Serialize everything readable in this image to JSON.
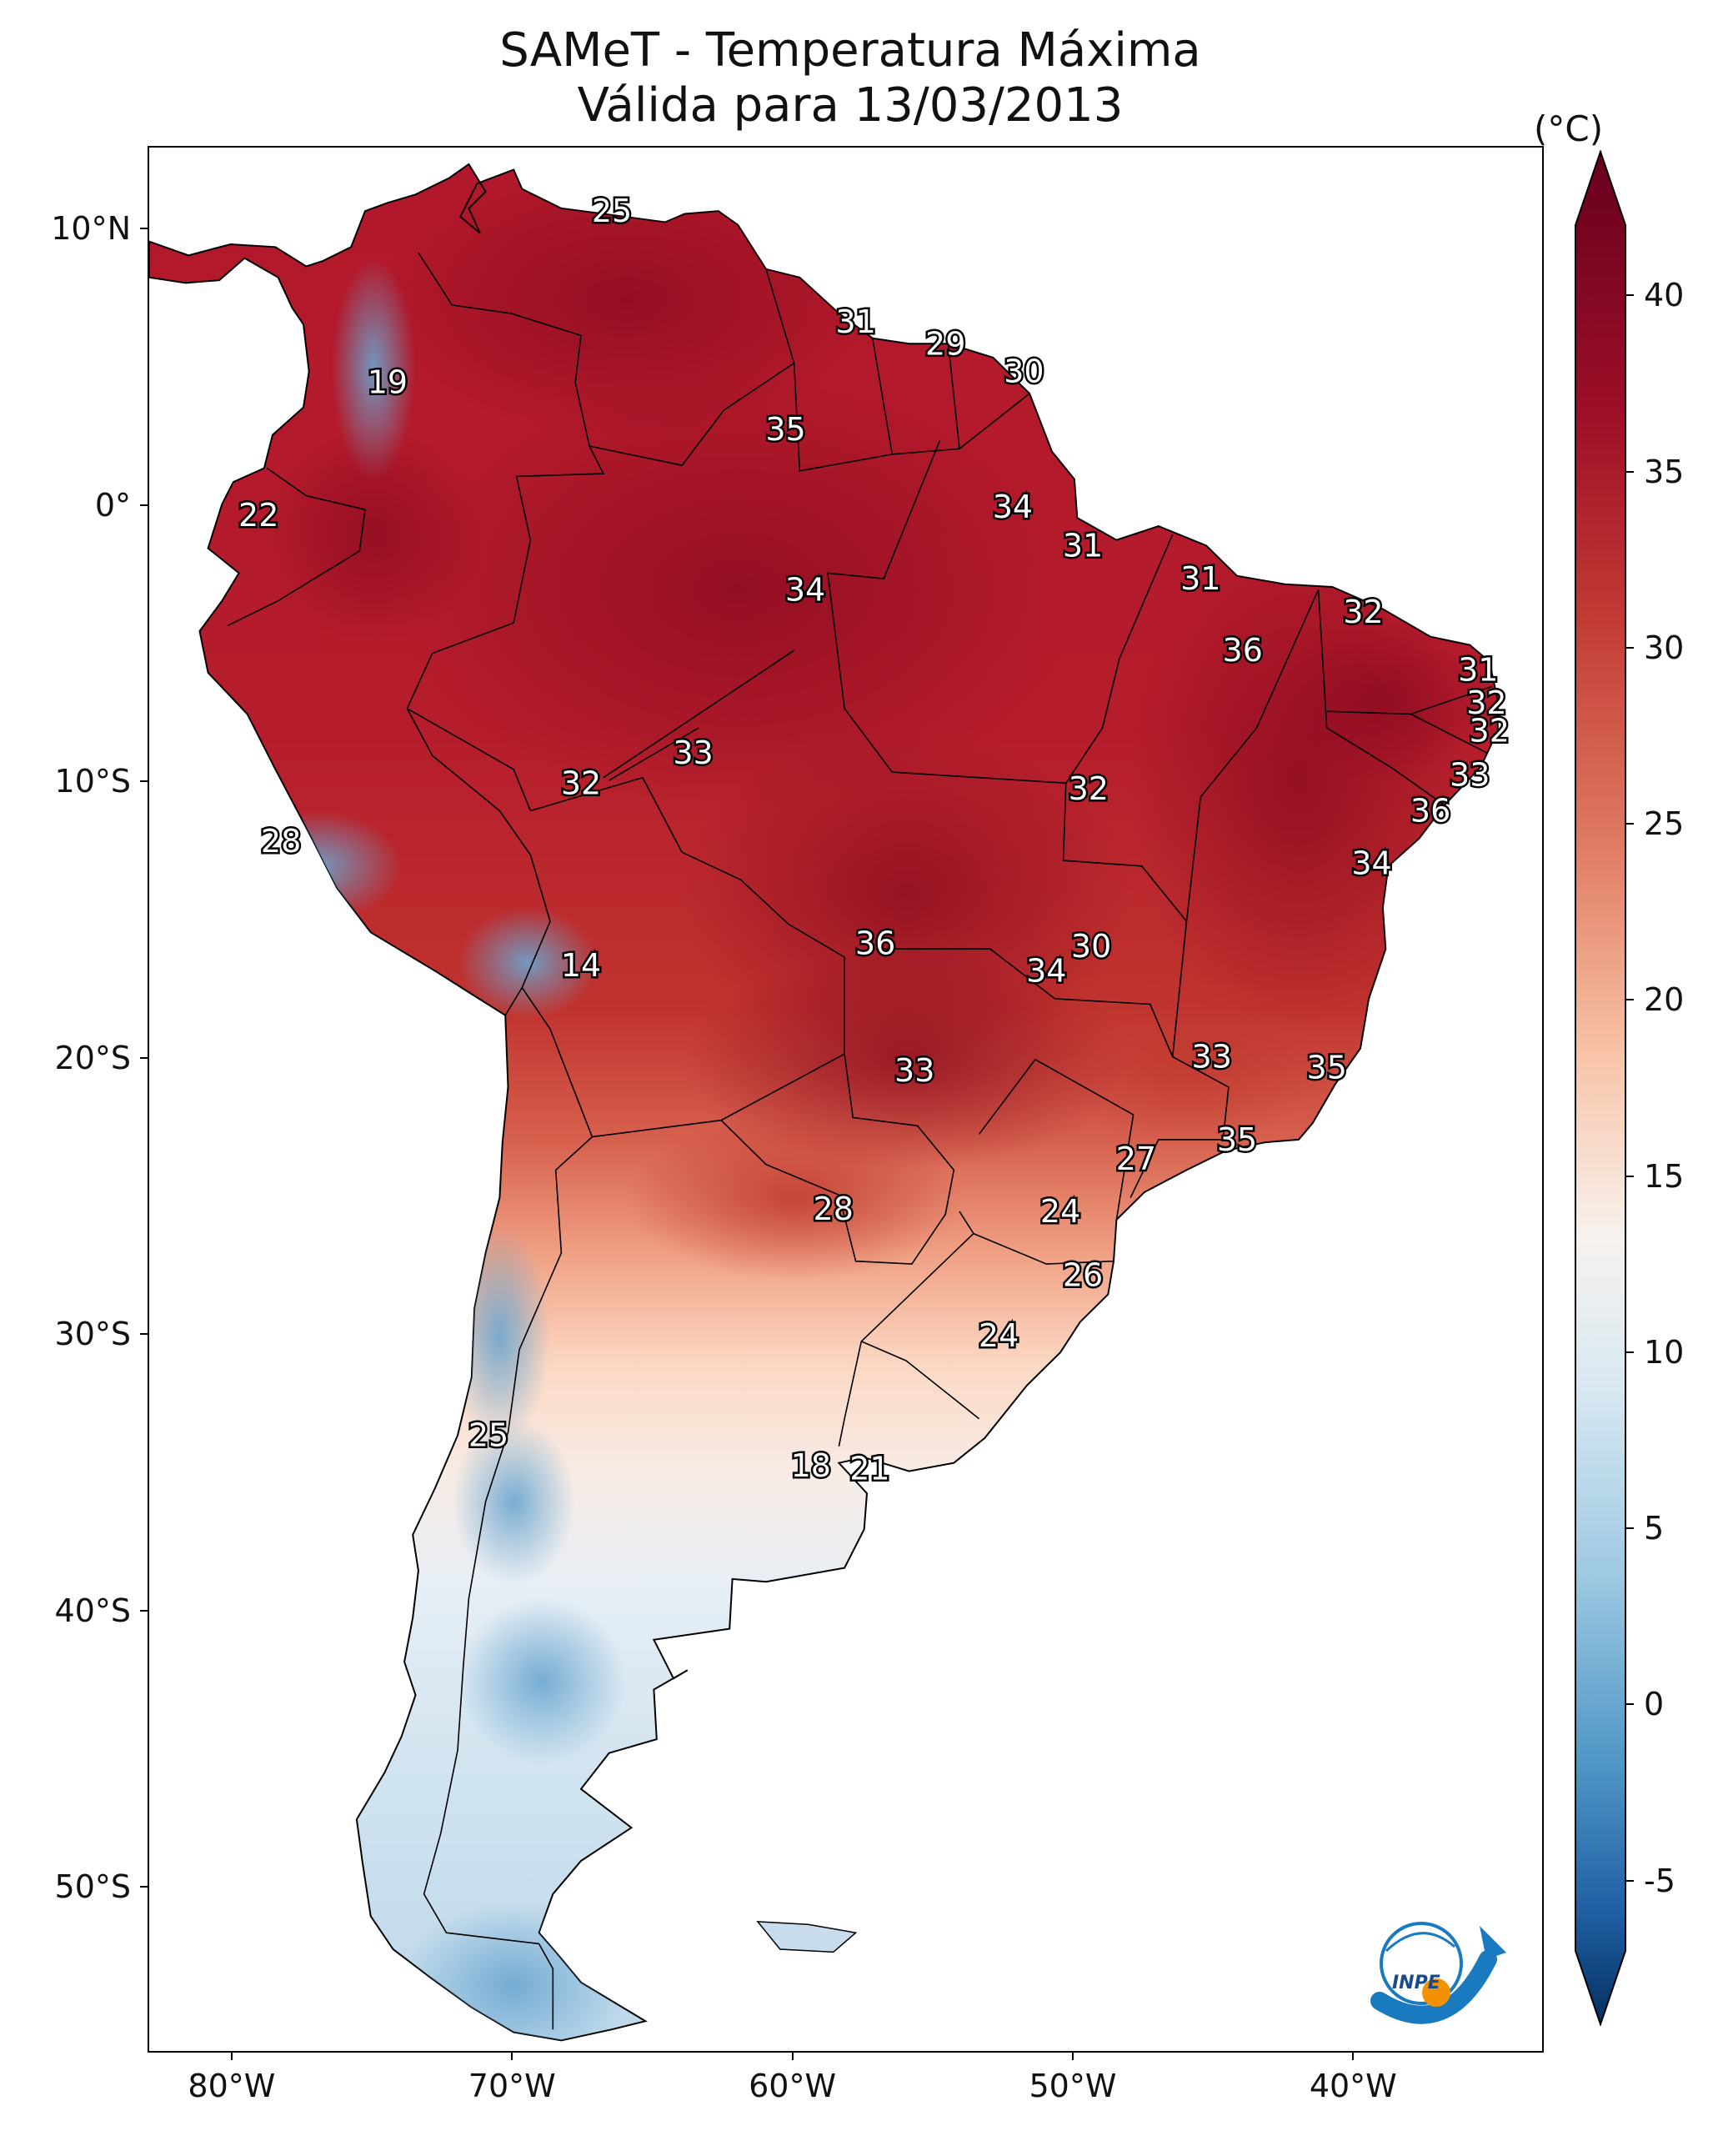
{
  "title": {
    "line1": "SAMeT - Temperatura Máxima",
    "line2": "Válida para 13/03/2013"
  },
  "map": {
    "lat_ticks": [
      "10°N",
      "0°",
      "10°S",
      "20°S",
      "30°S",
      "40°S",
      "50°S"
    ],
    "lon_ticks": [
      "80°W",
      "70°W",
      "60°W",
      "50°W",
      "40°W"
    ]
  },
  "colorbar": {
    "unit": "(°C)",
    "ticks": [
      "40",
      "35",
      "30",
      "25",
      "20",
      "15",
      "10",
      "5",
      "0",
      "-5"
    ],
    "min": -7,
    "max": 42
  },
  "contour_labels": [
    {
      "text": "25",
      "lon": -66.5,
      "lat": 10.7
    },
    {
      "text": "19",
      "lon": -74.5,
      "lat": 4.5
    },
    {
      "text": "31",
      "lon": -57.8,
      "lat": 6.7
    },
    {
      "text": "29",
      "lon": -54.6,
      "lat": 5.9
    },
    {
      "text": "30",
      "lon": -51.8,
      "lat": 4.9
    },
    {
      "text": "35",
      "lon": -60.3,
      "lat": 2.8
    },
    {
      "text": "22",
      "lon": -79.1,
      "lat": -0.3
    },
    {
      "text": "34",
      "lon": -52.2,
      "lat": 0.0
    },
    {
      "text": "31",
      "lon": -49.7,
      "lat": -1.4
    },
    {
      "text": "34",
      "lon": -59.6,
      "lat": -3.0
    },
    {
      "text": "31",
      "lon": -45.5,
      "lat": -2.6
    },
    {
      "text": "32",
      "lon": -39.7,
      "lat": -3.8
    },
    {
      "text": "36",
      "lon": -44.0,
      "lat": -5.2
    },
    {
      "text": "31",
      "lon": -35.6,
      "lat": -5.9
    },
    {
      "text": "32",
      "lon": -35.3,
      "lat": -7.1
    },
    {
      "text": "32",
      "lon": -35.2,
      "lat": -8.1
    },
    {
      "text": "33",
      "lon": -63.6,
      "lat": -8.9
    },
    {
      "text": "32",
      "lon": -67.6,
      "lat": -10.0
    },
    {
      "text": "32",
      "lon": -49.5,
      "lat": -10.2
    },
    {
      "text": "33",
      "lon": -35.9,
      "lat": -9.7
    },
    {
      "text": "36",
      "lon": -37.3,
      "lat": -11.0
    },
    {
      "text": "28",
      "lon": -78.3,
      "lat": -12.1
    },
    {
      "text": "34",
      "lon": -39.4,
      "lat": -12.9
    },
    {
      "text": "36",
      "lon": -57.1,
      "lat": -15.8
    },
    {
      "text": "30",
      "lon": -49.4,
      "lat": -15.9
    },
    {
      "text": "34",
      "lon": -51.0,
      "lat": -16.8
    },
    {
      "text": "14",
      "lon": -67.6,
      "lat": -16.6
    },
    {
      "text": "33",
      "lon": -45.1,
      "lat": -19.9
    },
    {
      "text": "33",
      "lon": -55.7,
      "lat": -20.4
    },
    {
      "text": "35",
      "lon": -41.0,
      "lat": -20.3
    },
    {
      "text": "35",
      "lon": -44.2,
      "lat": -22.9
    },
    {
      "text": "27",
      "lon": -47.8,
      "lat": -23.6
    },
    {
      "text": "24",
      "lon": -50.5,
      "lat": -25.5
    },
    {
      "text": "28",
      "lon": -58.6,
      "lat": -25.4
    },
    {
      "text": "26",
      "lon": -49.7,
      "lat": -27.8
    },
    {
      "text": "24",
      "lon": -52.7,
      "lat": -30.0
    },
    {
      "text": "25",
      "lon": -70.9,
      "lat": -33.6
    },
    {
      "text": "18",
      "lon": -59.4,
      "lat": -34.7
    },
    {
      "text": "21",
      "lon": -57.3,
      "lat": -34.8
    }
  ],
  "logo": {
    "text": "INPE"
  }
}
